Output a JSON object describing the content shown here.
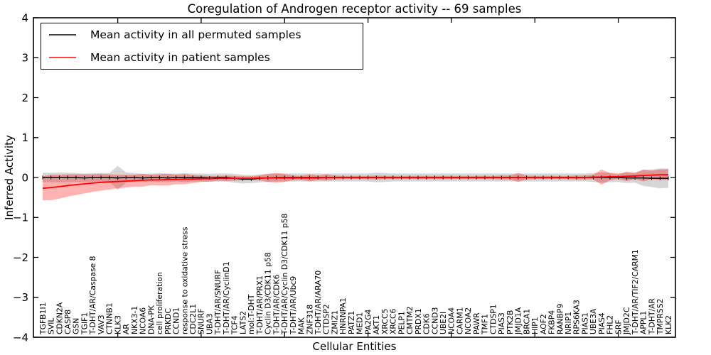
{
  "figure": {
    "background": "#ffffff",
    "frame_color": "#000000"
  },
  "chart_data": {
    "type": "line",
    "title": "Coregulation of Androgen receptor activity -- 69 samples",
    "xlabel": "Cellular Entities",
    "ylabel": "Inferred Activity",
    "ylim": [
      -4,
      4
    ],
    "xtick_label_rotation_deg": 90,
    "grid": false,
    "legend_position": "upper left",
    "ytick_labels": [
      "4",
      "3",
      "2",
      "1",
      "0",
      "−1",
      "−2",
      "−3",
      "−4"
    ],
    "ytick_values": [
      4,
      3,
      2,
      1,
      0,
      -1,
      -2,
      -3,
      -4
    ],
    "major_xtick_indices": [
      9,
      19,
      29,
      39,
      49,
      59,
      69
    ],
    "categories": [
      "TGFB1I1",
      "SVIL",
      "CDKN2A",
      "CASP8",
      "GSN",
      "TGIF1",
      "T-DHT/AR/Caspase 8",
      "VAV3",
      "CTNNB1",
      "KLK3",
      "AR",
      "NKX3-1",
      "NCOA6",
      "DNA-PK",
      "cell proliferation",
      "PRKDC",
      "CCND1",
      "response to oxidative stress",
      "CDC2L1",
      "SNURF",
      "UBA3",
      "T-DHT/AR/SNURF",
      "T-DHT/AR/CyclinD1",
      "TCF4",
      "LATS2",
      "mol:T-DHT",
      "T-DHT/AR/PRX1",
      "Cyclin D3/CDK11 p58",
      "T-DHT/AR/CDK6",
      "T-DHT/AR/Cyclin D3/CDK11 p58",
      "T-DHT/AR/Ubc9",
      "MAK",
      "ZNF318",
      "T-DHT/AR/ARA70",
      "CTDSP2",
      "ZMIZ1",
      "HNRNPA1",
      "PATZ1",
      "MED1",
      "PA2G4",
      "AKT1",
      "XRCC5",
      "XRCC6",
      "PELP1",
      "CMTM2",
      "PRDX1",
      "CDK6",
      "CCND3",
      "UBE2I",
      "NCOA4",
      "CARM1",
      "NCOA2",
      "PAWR",
      "TMF1",
      "CTDSP1",
      "PIAS3",
      "PTK2B",
      "JMJD1A",
      "BRCA1",
      "HIP1",
      "AOF2",
      "FKBP4",
      "RANBP9",
      "NRIP1",
      "RPS6KA3",
      "PIAS1",
      "UBE3A",
      "PIAS4",
      "FHL2",
      "SRF",
      "JMJD2C",
      "T-DHT/AR/TIF2/CARM1",
      "APPL1",
      "T-DHT/AR",
      "TMPRSS2",
      "KLK2"
    ],
    "series": [
      {
        "name": "Mean activity in all permuted samples",
        "color": "#000000",
        "band_color": "rgba(0,0,0,0.16)",
        "mean": [
          0,
          0,
          0,
          0,
          0,
          -0.01,
          0,
          0,
          0,
          -0.01,
          0,
          0,
          -0.01,
          0,
          0,
          -0.01,
          0,
          0,
          0,
          0,
          -0.01,
          0,
          0,
          -0.02,
          -0.04,
          -0.04,
          -0.02,
          -0.01,
          0,
          0,
          0,
          0,
          0,
          0,
          0,
          0,
          0,
          0,
          0,
          0,
          0,
          0,
          0,
          0,
          0,
          0,
          0,
          0,
          0,
          0,
          0,
          0,
          0,
          0,
          0,
          0,
          0,
          0,
          0,
          0,
          0,
          0,
          0,
          0,
          0,
          0,
          0,
          0,
          0,
          0,
          -0.01,
          -0.01,
          -0.01,
          -0.02,
          -0.02,
          -0.02
        ],
        "std": [
          0.12,
          0.12,
          0.12,
          0.12,
          0.11,
          0.11,
          0.11,
          0.11,
          0.11,
          0.3,
          0.13,
          0.11,
          0.1,
          0.1,
          0.11,
          0.1,
          0.1,
          0.11,
          0.1,
          0.1,
          0.1,
          0.1,
          0.1,
          0.11,
          0.11,
          0.1,
          0.1,
          0.1,
          0.1,
          0.1,
          0.1,
          0.1,
          0.1,
          0.1,
          0.1,
          0.1,
          0.1,
          0.1,
          0.1,
          0.1,
          0.12,
          0.11,
          0.1,
          0.1,
          0.1,
          0.1,
          0.1,
          0.1,
          0.1,
          0.1,
          0.1,
          0.1,
          0.1,
          0.1,
          0.1,
          0.1,
          0.1,
          0.1,
          0.1,
          0.1,
          0.1,
          0.1,
          0.1,
          0.1,
          0.1,
          0.1,
          0.11,
          0.13,
          0.12,
          0.11,
          0.13,
          0.12,
          0.2,
          0.22,
          0.25,
          0.24
        ]
      },
      {
        "name": "Mean activity in patient samples",
        "color": "#ff0000",
        "band_color": "rgba(255,0,0,0.30)",
        "mean": [
          -0.27,
          -0.25,
          -0.23,
          -0.2,
          -0.18,
          -0.16,
          -0.14,
          -0.12,
          -0.11,
          -0.1,
          -0.09,
          -0.08,
          -0.07,
          -0.06,
          -0.06,
          -0.05,
          -0.05,
          -0.04,
          -0.04,
          -0.03,
          -0.03,
          -0.02,
          -0.02,
          -0.02,
          -0.02,
          -0.02,
          -0.01,
          -0.01,
          -0.01,
          -0.01,
          -0.01,
          -0.01,
          -0.01,
          -0.01,
          0,
          0,
          0,
          0,
          0,
          0,
          0,
          0,
          0,
          0,
          0,
          0,
          0,
          0,
          0,
          0,
          0,
          0,
          0,
          0,
          0,
          0,
          0,
          0,
          0,
          0,
          0,
          0,
          0,
          0,
          0,
          0,
          0.01,
          0.01,
          0.02,
          0.02,
          0.03,
          0.04,
          0.05,
          0.06,
          0.07,
          0.07
        ],
        "std": [
          0.3,
          0.32,
          0.3,
          0.28,
          0.26,
          0.24,
          0.22,
          0.21,
          0.19,
          0.17,
          0.16,
          0.15,
          0.16,
          0.13,
          0.14,
          0.15,
          0.12,
          0.13,
          0.1,
          0.08,
          0.07,
          0.06,
          0.07,
          0.06,
          0.05,
          0.05,
          0.06,
          0.1,
          0.12,
          0.1,
          0.06,
          0.05,
          0.09,
          0.06,
          0.08,
          0.05,
          0.04,
          0.04,
          0.04,
          0.04,
          0.05,
          0.04,
          0.04,
          0.04,
          0.04,
          0.04,
          0.04,
          0.04,
          0.04,
          0.04,
          0.04,
          0.04,
          0.04,
          0.04,
          0.04,
          0.05,
          0.05,
          0.11,
          0.05,
          0.04,
          0.04,
          0.04,
          0.04,
          0.04,
          0.05,
          0.05,
          0.06,
          0.19,
          0.09,
          0.06,
          0.12,
          0.08,
          0.15,
          0.11,
          0.13,
          0.14
        ]
      }
    ]
  }
}
